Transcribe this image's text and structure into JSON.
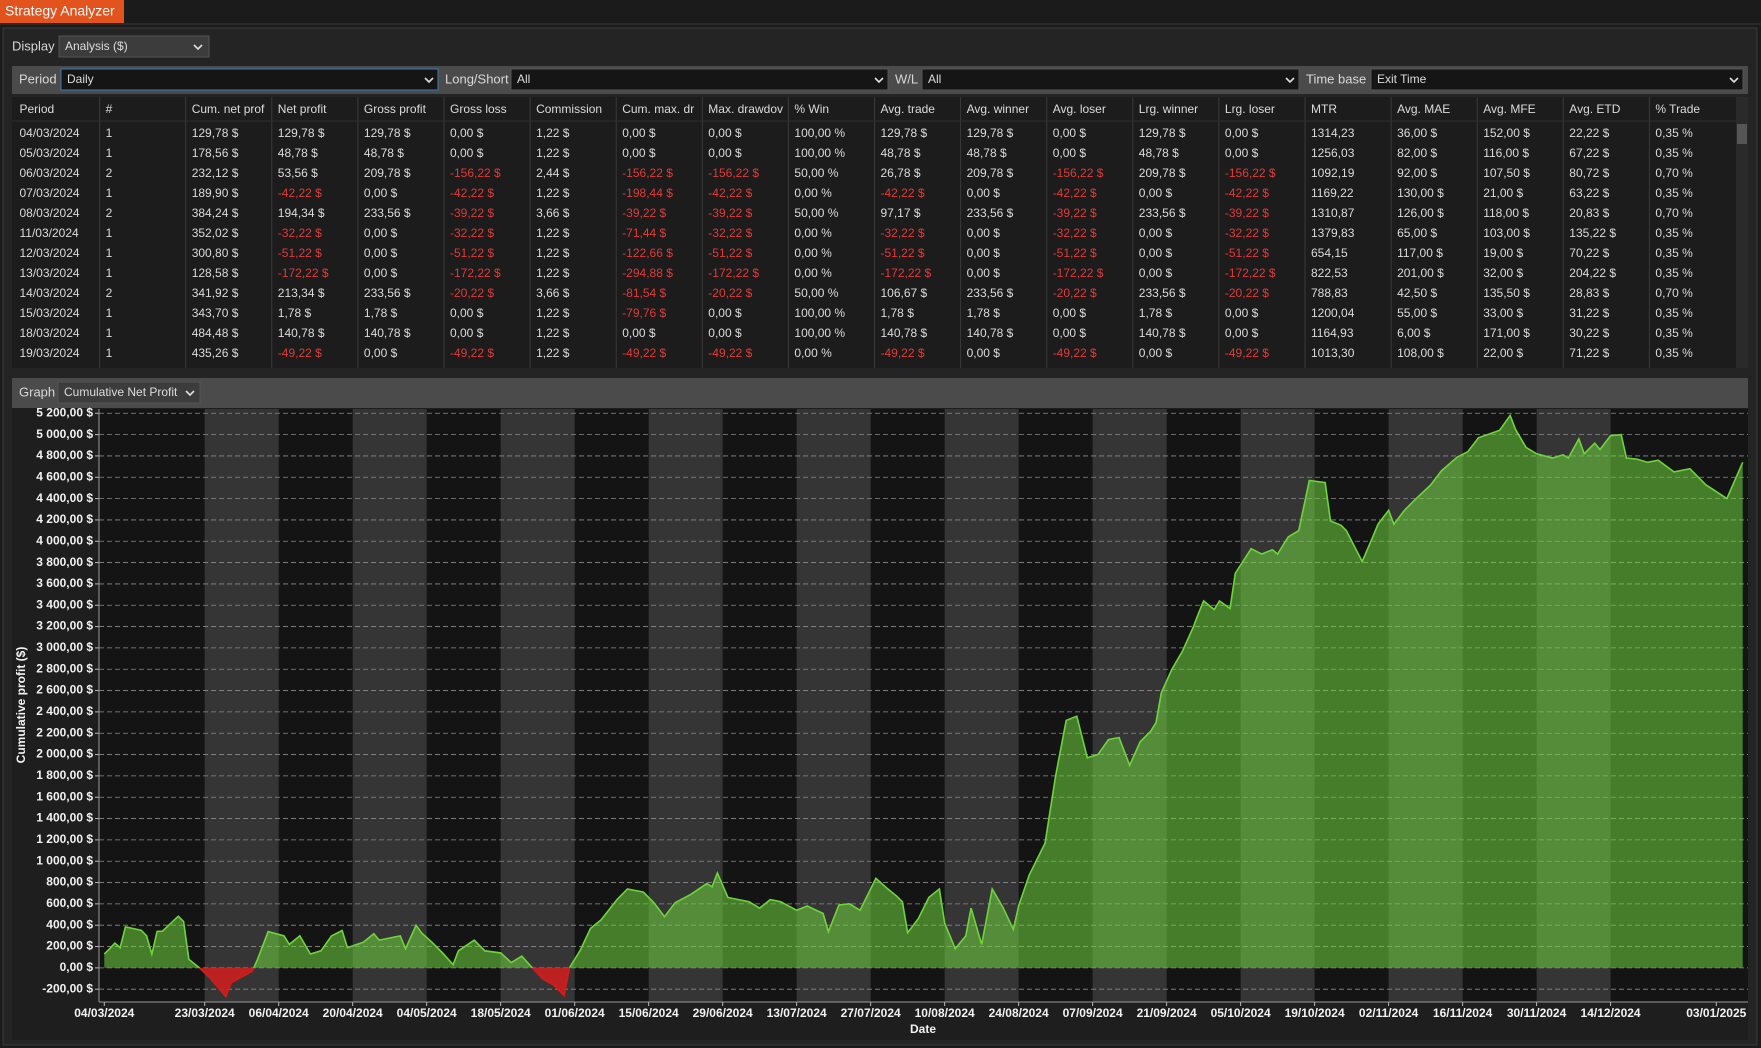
{
  "window": {
    "title": "Strategy Analyzer"
  },
  "toolbar": {
    "display_label": "Display",
    "display_value": "Analysis ($)"
  },
  "filters": {
    "period_label": "Period",
    "period_value": "Daily",
    "long_short_label": "Long/Short",
    "long_short_value": "All",
    "wl_label": "W/L",
    "wl_value": "All",
    "time_base_label": "Time base",
    "time_base_value": "Exit Time"
  },
  "table": {
    "columns": [
      "Period",
      "#",
      "Cum. net prof",
      "Net profit",
      "Gross profit",
      "Gross loss",
      "Commission",
      "Cum. max. dr",
      "Max. drawdov",
      "% Win",
      "Avg. trade",
      "Avg. winner",
      "Avg. loser",
      "Lrg. winner",
      "Lrg. loser",
      "MTR",
      "Avg. MAE",
      "Avg. MFE",
      "Avg. ETD",
      "% Trade"
    ],
    "rows": [
      [
        "04/03/2024",
        "1",
        "129,78 $",
        "129,78 $",
        "129,78 $",
        "0,00 $",
        "1,22 $",
        "0,00 $",
        "0,00 $",
        "100,00 %",
        "129,78 $",
        "129,78 $",
        "0,00 $",
        "129,78 $",
        "0,00 $",
        "1314,23",
        "36,00 $",
        "152,00 $",
        "22,22 $",
        "0,35 %"
      ],
      [
        "05/03/2024",
        "1",
        "178,56 $",
        "48,78 $",
        "48,78 $",
        "0,00 $",
        "1,22 $",
        "0,00 $",
        "0,00 $",
        "100,00 %",
        "48,78 $",
        "48,78 $",
        "0,00 $",
        "48,78 $",
        "0,00 $",
        "1256,03",
        "82,00 $",
        "116,00 $",
        "67,22 $",
        "0,35 %"
      ],
      [
        "06/03/2024",
        "2",
        "232,12 $",
        "53,56 $",
        "209,78 $",
        "-156,22 $",
        "2,44 $",
        "-156,22 $",
        "-156,22 $",
        "50,00 %",
        "26,78 $",
        "209,78 $",
        "-156,22 $",
        "209,78 $",
        "-156,22 $",
        "1092,19",
        "92,00 $",
        "107,50 $",
        "80,72 $",
        "0,70 %"
      ],
      [
        "07/03/2024",
        "1",
        "189,90 $",
        "-42,22 $",
        "0,00 $",
        "-42,22 $",
        "1,22 $",
        "-198,44 $",
        "-42,22 $",
        "0,00 %",
        "-42,22 $",
        "0,00 $",
        "-42,22 $",
        "0,00 $",
        "-42,22 $",
        "1169,22",
        "130,00 $",
        "21,00 $",
        "63,22 $",
        "0,35 %"
      ],
      [
        "08/03/2024",
        "2",
        "384,24 $",
        "194,34 $",
        "233,56 $",
        "-39,22 $",
        "3,66 $",
        "-39,22 $",
        "-39,22 $",
        "50,00 %",
        "97,17 $",
        "233,56 $",
        "-39,22 $",
        "233,56 $",
        "-39,22 $",
        "1310,87",
        "126,00 $",
        "118,00 $",
        "20,83 $",
        "0,70 %"
      ],
      [
        "11/03/2024",
        "1",
        "352,02 $",
        "-32,22 $",
        "0,00 $",
        "-32,22 $",
        "1,22 $",
        "-71,44 $",
        "-32,22 $",
        "0,00 %",
        "-32,22 $",
        "0,00 $",
        "-32,22 $",
        "0,00 $",
        "-32,22 $",
        "1379,83",
        "65,00 $",
        "103,00 $",
        "135,22 $",
        "0,35 %"
      ],
      [
        "12/03/2024",
        "1",
        "300,80 $",
        "-51,22 $",
        "0,00 $",
        "-51,22 $",
        "1,22 $",
        "-122,66 $",
        "-51,22 $",
        "0,00 %",
        "-51,22 $",
        "0,00 $",
        "-51,22 $",
        "0,00 $",
        "-51,22 $",
        "654,15",
        "117,00 $",
        "19,00 $",
        "70,22 $",
        "0,35 %"
      ],
      [
        "13/03/2024",
        "1",
        "128,58 $",
        "-172,22 $",
        "0,00 $",
        "-172,22 $",
        "1,22 $",
        "-294,88 $",
        "-172,22 $",
        "0,00 %",
        "-172,22 $",
        "0,00 $",
        "-172,22 $",
        "0,00 $",
        "-172,22 $",
        "822,53",
        "201,00 $",
        "32,00 $",
        "204,22 $",
        "0,35 %"
      ],
      [
        "14/03/2024",
        "2",
        "341,92 $",
        "213,34 $",
        "233,56 $",
        "-20,22 $",
        "3,66 $",
        "-81,54 $",
        "-20,22 $",
        "50,00 %",
        "106,67 $",
        "233,56 $",
        "-20,22 $",
        "233,56 $",
        "-20,22 $",
        "788,83",
        "42,50 $",
        "135,50 $",
        "28,83 $",
        "0,70 %"
      ],
      [
        "15/03/2024",
        "1",
        "343,70 $",
        "1,78 $",
        "1,78 $",
        "0,00 $",
        "1,22 $",
        "-79,76 $",
        "0,00 $",
        "100,00 %",
        "1,78 $",
        "1,78 $",
        "0,00 $",
        "1,78 $",
        "0,00 $",
        "1200,04",
        "55,00 $",
        "33,00 $",
        "31,22 $",
        "0,35 %"
      ],
      [
        "18/03/2024",
        "1",
        "484,48 $",
        "140,78 $",
        "140,78 $",
        "0,00 $",
        "1,22 $",
        "0,00 $",
        "0,00 $",
        "100,00 %",
        "140,78 $",
        "140,78 $",
        "0,00 $",
        "140,78 $",
        "0,00 $",
        "1164,93",
        "6,00 $",
        "171,00 $",
        "30,22 $",
        "0,35 %"
      ],
      [
        "19/03/2024",
        "1",
        "435,26 $",
        "-49,22 $",
        "0,00 $",
        "-49,22 $",
        "1,22 $",
        "-49,22 $",
        "-49,22 $",
        "0,00 %",
        "-49,22 $",
        "0,00 $",
        "-49,22 $",
        "0,00 $",
        "-49,22 $",
        "1013,30",
        "108,00 $",
        "22,00 $",
        "71,22 $",
        "0,35 %"
      ]
    ]
  },
  "graph": {
    "label": "Graph",
    "value": "Cumulative Net Profit"
  },
  "chart_data": {
    "type": "area",
    "x_label": "Date",
    "y_label": "Cumulative profit ($)",
    "x": [
      "2024-03-04",
      "2024-03-05",
      "2024-03-06",
      "2024-03-07",
      "2024-03-08",
      "2024-03-11",
      "2024-03-12",
      "2024-03-13",
      "2024-03-14",
      "2024-03-15",
      "2024-03-18",
      "2024-03-19",
      "2024-03-20",
      "2024-03-22",
      "2024-03-24",
      "2024-03-27",
      "2024-03-28",
      "2024-04-01",
      "2024-04-02",
      "2024-04-04",
      "2024-04-07",
      "2024-04-08",
      "2024-04-10",
      "2024-04-12",
      "2024-04-14",
      "2024-04-16",
      "2024-04-18",
      "2024-04-19",
      "2024-04-22",
      "2024-04-24",
      "2024-04-25",
      "2024-04-27",
      "2024-04-29",
      "2024-04-30",
      "2024-05-02",
      "2024-05-03",
      "2024-05-05",
      "2024-05-07",
      "2024-05-09",
      "2024-05-10",
      "2024-05-13",
      "2024-05-15",
      "2024-05-18",
      "2024-05-20",
      "2024-05-22",
      "2024-05-24",
      "2024-05-26",
      "2024-05-28",
      "2024-05-30",
      "2024-05-31",
      "2024-06-02",
      "2024-06-04",
      "2024-06-06",
      "2024-06-09",
      "2024-06-11",
      "2024-06-14",
      "2024-06-16",
      "2024-06-18",
      "2024-06-20",
      "2024-06-23",
      "2024-06-26",
      "2024-06-27",
      "2024-06-28",
      "2024-06-30",
      "2024-07-04",
      "2024-07-06",
      "2024-07-08",
      "2024-07-10",
      "2024-07-13",
      "2024-07-15",
      "2024-07-18",
      "2024-07-19",
      "2024-07-21",
      "2024-07-23",
      "2024-07-25",
      "2024-07-28",
      "2024-07-30",
      "2024-08-01",
      "2024-08-02",
      "2024-08-03",
      "2024-08-05",
      "2024-08-07",
      "2024-08-09",
      "2024-08-10",
      "2024-08-12",
      "2024-08-14",
      "2024-08-15",
      "2024-08-17",
      "2024-08-19",
      "2024-08-21",
      "2024-08-23",
      "2024-08-24",
      "2024-08-26",
      "2024-08-27",
      "2024-08-29",
      "2024-08-31",
      "2024-09-02",
      "2024-09-04",
      "2024-09-06",
      "2024-09-08",
      "2024-09-10",
      "2024-09-12",
      "2024-09-14",
      "2024-09-16",
      "2024-09-18",
      "2024-09-19",
      "2024-09-20",
      "2024-09-22",
      "2024-09-24",
      "2024-09-26",
      "2024-09-27",
      "2024-09-28",
      "2024-09-30",
      "2024-10-01",
      "2024-10-03",
      "2024-10-04",
      "2024-10-07",
      "2024-10-09",
      "2024-10-11",
      "2024-10-12",
      "2024-10-14",
      "2024-10-16",
      "2024-10-18",
      "2024-10-21",
      "2024-10-22",
      "2024-10-24",
      "2024-10-25",
      "2024-10-28",
      "2024-10-30",
      "2024-10-31",
      "2024-11-02",
      "2024-11-03",
      "2024-11-05",
      "2024-11-07",
      "2024-11-10",
      "2024-11-12",
      "2024-11-15",
      "2024-11-17",
      "2024-11-19",
      "2024-11-23",
      "2024-11-25",
      "2024-11-26",
      "2024-11-28",
      "2024-11-30",
      "2024-12-03",
      "2024-12-05",
      "2024-12-06",
      "2024-12-08",
      "2024-12-09",
      "2024-12-11",
      "2024-12-12",
      "2024-12-14",
      "2024-12-16",
      "2024-12-17",
      "2024-12-19",
      "2024-12-21",
      "2024-12-23",
      "2024-12-26",
      "2024-12-29",
      "2025-01-01",
      "2025-01-05",
      "2025-01-08"
    ],
    "values": [
      129.78,
      178.56,
      232.12,
      189.9,
      384.24,
      352.02,
      300.8,
      128.58,
      341.92,
      343.7,
      484.48,
      435.26,
      80,
      0,
      -95,
      -270,
      -140,
      -30,
      80,
      340,
      300,
      220,
      300,
      130,
      160,
      300,
      350,
      190,
      240,
      320,
      260,
      280,
      300,
      180,
      400,
      330,
      240,
      140,
      30,
      160,
      260,
      160,
      140,
      50,
      110,
      0,
      -105,
      -160,
      -260,
      0,
      160,
      370,
      450,
      640,
      740,
      710,
      610,
      480,
      610,
      690,
      790,
      760,
      890,
      660,
      620,
      560,
      640,
      620,
      540,
      580,
      510,
      340,
      590,
      600,
      540,
      840,
      750,
      670,
      620,
      330,
      460,
      660,
      740,
      420,
      180,
      300,
      560,
      220,
      740,
      570,
      360,
      580,
      870,
      970,
      1170,
      1800,
      2320,
      2360,
      1970,
      2000,
      2140,
      2160,
      1900,
      2120,
      2220,
      2300,
      2580,
      2800,
      2970,
      3190,
      3320,
      3440,
      3360,
      3440,
      3370,
      3700,
      3930,
      3880,
      3920,
      3880,
      4040,
      4100,
      4570,
      4550,
      4190,
      4150,
      4100,
      3810,
      4040,
      4160,
      4290,
      4160,
      4290,
      4390,
      4530,
      4660,
      4790,
      4840,
      4970,
      5040,
      5180,
      5050,
      4880,
      4820,
      4780,
      4810,
      4780,
      4960,
      4820,
      4920,
      4860,
      4990,
      5000,
      4780,
      4770,
      4740,
      4760,
      4650,
      4680,
      4530,
      4400,
      4740
    ],
    "color": "#6fd43c",
    "negative_color": "#d41c1c",
    "xlim": [
      "2024-03-03",
      "2025-01-09"
    ],
    "xticks": [
      {
        "value": "2024-03-04",
        "label": "04/03/2024"
      },
      {
        "value": "2024-03-23",
        "label": "23/03/2024"
      },
      {
        "value": "2024-04-06",
        "label": "06/04/2024"
      },
      {
        "value": "2024-04-20",
        "label": "20/04/2024"
      },
      {
        "value": "2024-05-04",
        "label": "04/05/2024"
      },
      {
        "value": "2024-05-18",
        "label": "18/05/2024"
      },
      {
        "value": "2024-06-01",
        "label": "01/06/2024"
      },
      {
        "value": "2024-06-15",
        "label": "15/06/2024"
      },
      {
        "value": "2024-06-29",
        "label": "29/06/2024"
      },
      {
        "value": "2024-07-13",
        "label": "13/07/2024"
      },
      {
        "value": "2024-07-27",
        "label": "27/07/2024"
      },
      {
        "value": "2024-08-10",
        "label": "10/08/2024"
      },
      {
        "value": "2024-08-24",
        "label": "24/08/2024"
      },
      {
        "value": "2024-09-07",
        "label": "07/09/2024"
      },
      {
        "value": "2024-09-21",
        "label": "21/09/2024"
      },
      {
        "value": "2024-10-05",
        "label": "05/10/2024"
      },
      {
        "value": "2024-10-19",
        "label": "19/10/2024"
      },
      {
        "value": "2024-11-02",
        "label": "02/11/2024"
      },
      {
        "value": "2024-11-16",
        "label": "16/11/2024"
      },
      {
        "value": "2024-11-30",
        "label": "30/11/2024"
      },
      {
        "value": "2024-12-14",
        "label": "14/12/2024"
      },
      {
        "value": "2025-01-03",
        "label": "03/01/2025"
      }
    ],
    "ylim": [
      -320,
      5240
    ],
    "yticks": [
      {
        "value": -200,
        "label": "-200,00 $"
      },
      {
        "value": 0,
        "label": "0,00 $"
      },
      {
        "value": 200,
        "label": "200,00 $"
      },
      {
        "value": 400,
        "label": "400,00 $"
      },
      {
        "value": 600,
        "label": "600,00 $"
      },
      {
        "value": 800,
        "label": "800,00 $"
      },
      {
        "value": 1000,
        "label": "1 000,00 $"
      },
      {
        "value": 1200,
        "label": "1 200,00 $"
      },
      {
        "value": 1400,
        "label": "1 400,00 $"
      },
      {
        "value": 1600,
        "label": "1 600,00 $"
      },
      {
        "value": 1800,
        "label": "1 800,00 $"
      },
      {
        "value": 2000,
        "label": "2 000,00 $"
      },
      {
        "value": 2200,
        "label": "2 200,00 $"
      },
      {
        "value": 2400,
        "label": "2 400,00 $"
      },
      {
        "value": 2600,
        "label": "2 600,00 $"
      },
      {
        "value": 2800,
        "label": "2 800,00 $"
      },
      {
        "value": 3000,
        "label": "3 000,00 $"
      },
      {
        "value": 3200,
        "label": "3 200,00 $"
      },
      {
        "value": 3400,
        "label": "3 400,00 $"
      },
      {
        "value": 3600,
        "label": "3 600,00 $"
      },
      {
        "value": 3800,
        "label": "3 800,00 $"
      },
      {
        "value": 4000,
        "label": "4 000,00 $"
      },
      {
        "value": 4200,
        "label": "4 200,00 $"
      },
      {
        "value": 4400,
        "label": "4 400,00 $"
      },
      {
        "value": 4600,
        "label": "4 600,00 $"
      },
      {
        "value": 4800,
        "label": "4 800,00 $"
      },
      {
        "value": 5000,
        "label": "5 000,00 $"
      },
      {
        "value": 5200,
        "label": "5 200,00 $"
      }
    ],
    "grid": true
  }
}
